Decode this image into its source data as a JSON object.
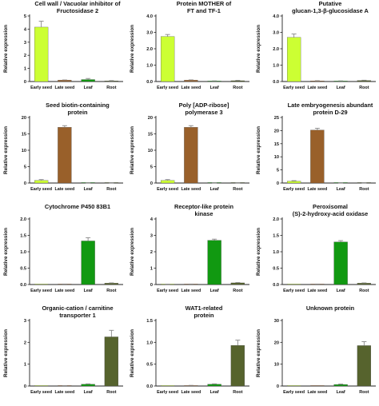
{
  "y_axis_label": "Relative expression",
  "colors": {
    "Early seed": "#ccff33",
    "Late seed": "#99602a",
    "Leaf": "#119911",
    "Root": "#56632d",
    "axis": "#222222",
    "error": "#888888"
  },
  "chart_data": [
    {
      "type": "bar",
      "title": "Cell wall / Vacuolar inhibitor of\nFructosidase 2",
      "categories": [
        "Early seed",
        "Late seed",
        "Leaf",
        "Root"
      ],
      "values": [
        4.15,
        0.1,
        0.15,
        0.05
      ],
      "errors": [
        0.45,
        0.02,
        0.08,
        0.02
      ],
      "ylim": [
        0,
        5
      ],
      "yticks": [
        "0",
        "1",
        "2",
        "3",
        "4",
        "5"
      ],
      "ylabel": "Relative expression"
    },
    {
      "type": "bar",
      "title": "Protein MOTHER of\nFT and TF-1",
      "categories": [
        "Early seed",
        "Late seed",
        "Leaf",
        "Root"
      ],
      "values": [
        2.75,
        0.08,
        0.03,
        0.05
      ],
      "errors": [
        0.12,
        0.02,
        0.01,
        0.02
      ],
      "ylim": [
        0,
        4
      ],
      "yticks": [
        "0.0",
        "1.0",
        "2.0",
        "3.0",
        "4.0"
      ],
      "ylabel": "Relative expression"
    },
    {
      "type": "bar",
      "title": "Putative\nglucan-1,3-β-glucosidase A",
      "categories": [
        "Early seed",
        "Late seed",
        "Leaf",
        "Root"
      ],
      "values": [
        2.7,
        0.04,
        0.03,
        0.06
      ],
      "errors": [
        0.2,
        0.01,
        0.01,
        0.02
      ],
      "ylim": [
        0,
        4
      ],
      "yticks": [
        "0.0",
        "1.0",
        "2.0",
        "3.0",
        "4.0"
      ],
      "ylabel": "Relative expression"
    },
    {
      "type": "bar",
      "title": "Seed biotin-containing\nprotein",
      "categories": [
        "Early seed",
        "Late seed",
        "Leaf",
        "Root"
      ],
      "values": [
        0.8,
        17.0,
        0.02,
        0.02
      ],
      "errors": [
        0.25,
        0.5,
        0.01,
        0.01
      ],
      "ylim": [
        0,
        20
      ],
      "yticks": [
        "0",
        "5",
        "10",
        "15",
        "20"
      ],
      "ylabel": "Relative expression"
    },
    {
      "type": "bar",
      "title": "Poly [ADP-ribose]\npolymerase 3",
      "categories": [
        "Early seed",
        "Late seed",
        "Leaf",
        "Root"
      ],
      "values": [
        0.8,
        17.0,
        0.02,
        0.03
      ],
      "errors": [
        0.25,
        0.5,
        0.01,
        0.01
      ],
      "ylim": [
        0,
        20
      ],
      "yticks": [
        "0",
        "5",
        "10",
        "15",
        "20"
      ],
      "ylabel": "Relative expression"
    },
    {
      "type": "bar",
      "title": "Late embryogenesis abundant\nprotein D-29",
      "categories": [
        "Early seed",
        "Late seed",
        "Leaf",
        "Root"
      ],
      "values": [
        0.7,
        20.2,
        0.02,
        0.02
      ],
      "errors": [
        0.2,
        0.7,
        0.01,
        0.01
      ],
      "ylim": [
        0,
        25
      ],
      "yticks": [
        "0",
        "5",
        "10",
        "15",
        "20",
        "25"
      ],
      "ylabel": "Relative expression"
    },
    {
      "type": "bar",
      "title": "Cytochrome P450 83B1",
      "categories": [
        "Early seed",
        "Late seed",
        "Leaf",
        "Root"
      ],
      "values": [
        0.0,
        0.01,
        1.33,
        0.04
      ],
      "errors": [
        0.0,
        0.005,
        0.1,
        0.01
      ],
      "ylim": [
        0,
        2.0
      ],
      "yticks": [
        "0.0",
        "0.5",
        "1.0",
        "1.5",
        "2.0"
      ],
      "ylabel": "Relative expression"
    },
    {
      "type": "bar",
      "title": "Receptor-like protein\nkinase",
      "categories": [
        "Early seed",
        "Late seed",
        "Leaf",
        "Root"
      ],
      "values": [
        0.01,
        0.02,
        2.7,
        0.1
      ],
      "errors": [
        0.005,
        0.01,
        0.07,
        0.02
      ],
      "ylim": [
        0,
        4
      ],
      "yticks": [
        "0",
        "1",
        "2",
        "3",
        "4"
      ],
      "ylabel": "Relative expression"
    },
    {
      "type": "bar",
      "title": "Peroxisomal\n(S)-2-hydroxy-acid oxidase",
      "categories": [
        "Early seed",
        "Late seed",
        "Leaf",
        "Root"
      ],
      "values": [
        0.0,
        0.01,
        1.3,
        0.04
      ],
      "errors": [
        0.0,
        0.005,
        0.04,
        0.01
      ],
      "ylim": [
        0,
        2.0
      ],
      "yticks": [
        "0.0",
        "0.5",
        "1.0",
        "1.5",
        "2.0"
      ],
      "ylabel": "Relative expression"
    },
    {
      "type": "bar",
      "title": "Organic-cation / carnitine\ntransporter 1",
      "categories": [
        "Early seed",
        "Late seed",
        "Leaf",
        "Root"
      ],
      "values": [
        0.0,
        0.01,
        0.08,
        2.25
      ],
      "errors": [
        0.0,
        0.005,
        0.02,
        0.3
      ],
      "ylim": [
        0,
        3
      ],
      "yticks": [
        "0",
        "1",
        "2",
        "3"
      ],
      "ylabel": "Relative expression"
    },
    {
      "type": "bar",
      "title": "WAT1-related\nprotein",
      "categories": [
        "Early seed",
        "Late seed",
        "Leaf",
        "Root"
      ],
      "values": [
        0.0,
        0.01,
        0.04,
        0.93
      ],
      "errors": [
        0.0,
        0.005,
        0.01,
        0.12
      ],
      "ylim": [
        0,
        1.5
      ],
      "yticks": [
        "0.0",
        "0.5",
        "1.0",
        "1.5"
      ],
      "ylabel": "Relative expression"
    },
    {
      "type": "bar",
      "title": "Unknown protein",
      "categories": [
        "Early seed",
        "Late seed",
        "Leaf",
        "Root"
      ],
      "values": [
        0.0,
        0.0,
        0.7,
        18.5
      ],
      "errors": [
        0.0,
        0.0,
        0.2,
        1.8
      ],
      "ylim": [
        0,
        30
      ],
      "yticks": [
        "0",
        "10",
        "20",
        "30"
      ],
      "ylabel": "Relative expression"
    }
  ]
}
